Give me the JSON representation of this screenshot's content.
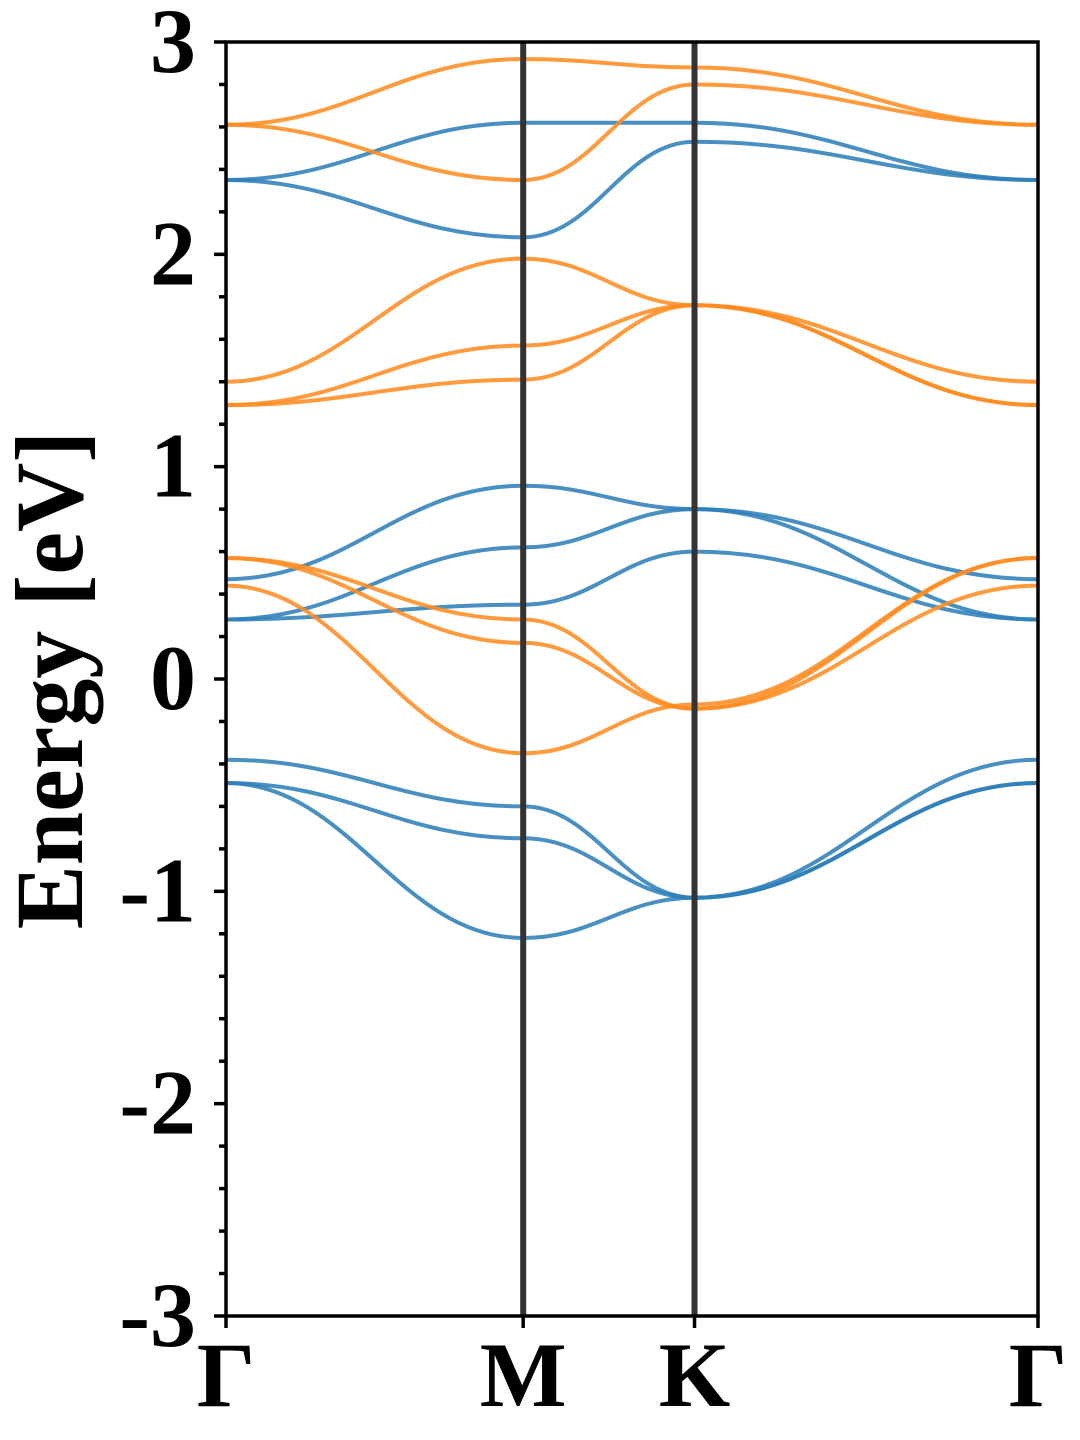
{
  "chart_data": {
    "type": "line",
    "title": "",
    "xlabel": "",
    "ylabel": "Energy [eV]",
    "ylim": [
      -3,
      3
    ],
    "grid": false,
    "legend": "none",
    "x_ticks": [
      {
        "label": "Γ",
        "pos": 0.0
      },
      {
        "label": "M",
        "pos": 0.366
      },
      {
        "label": "K",
        "pos": 0.577
      },
      {
        "label": "Γ",
        "pos": 1.0
      }
    ],
    "y_ticks": [
      {
        "label": "-3",
        "value": -3
      },
      {
        "label": "-2",
        "value": -2
      },
      {
        "label": "-1",
        "value": -1
      },
      {
        "label": "0",
        "value": 0
      },
      {
        "label": "1",
        "value": 1
      },
      {
        "label": "2",
        "value": 2
      },
      {
        "label": "3",
        "value": 3
      }
    ],
    "y_minor_step": 0.2,
    "colors": {
      "spin_up": "#2f7fba",
      "spin_down": "#ff8c22",
      "high_symmetry": "#333333"
    },
    "k_points": [
      0,
      0.366,
      0.577,
      1.0
    ],
    "series": [
      {
        "group": "spin_up",
        "values": [
          0.28,
          0.35,
          0.6,
          0.28
        ]
      },
      {
        "group": "spin_up",
        "values": [
          0.28,
          0.62,
          0.8,
          0.47
        ]
      },
      {
        "group": "spin_up",
        "values": [
          0.47,
          0.91,
          0.8,
          0.28
        ]
      },
      {
        "group": "spin_up",
        "values": [
          -0.38,
          -0.6,
          -1.03,
          -0.38
        ]
      },
      {
        "group": "spin_up",
        "values": [
          -0.49,
          -0.75,
          -1.03,
          -0.49
        ]
      },
      {
        "group": "spin_up",
        "values": [
          -0.49,
          -1.22,
          -1.03,
          -0.49
        ]
      },
      {
        "group": "spin_up",
        "values": [
          2.35,
          2.08,
          2.53,
          2.35
        ]
      },
      {
        "group": "spin_up",
        "values": [
          2.35,
          2.62,
          2.62,
          2.35
        ]
      },
      {
        "group": "spin_down",
        "values": [
          0.57,
          0.17,
          -0.14,
          0.57
        ]
      },
      {
        "group": "spin_down",
        "values": [
          0.57,
          0.28,
          -0.14,
          0.44
        ]
      },
      {
        "group": "spin_down",
        "values": [
          0.44,
          -0.35,
          -0.12,
          0.57
        ]
      },
      {
        "group": "spin_down",
        "values": [
          1.29,
          1.41,
          1.76,
          1.29
        ]
      },
      {
        "group": "spin_down",
        "values": [
          1.29,
          1.57,
          1.76,
          1.29
        ]
      },
      {
        "group": "spin_down",
        "values": [
          1.4,
          1.98,
          1.76,
          1.4
        ]
      },
      {
        "group": "spin_down",
        "values": [
          2.61,
          2.35,
          2.8,
          2.61
        ]
      },
      {
        "group": "spin_down",
        "values": [
          2.61,
          2.92,
          2.88,
          2.61
        ]
      }
    ]
  }
}
